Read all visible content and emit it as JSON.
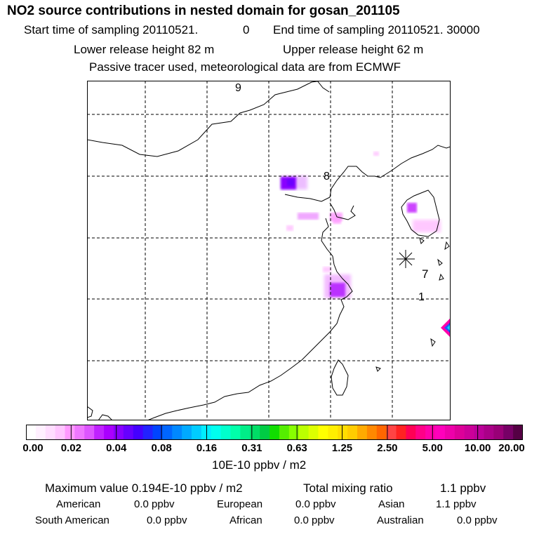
{
  "title": "NO2 source contributions in nested domain for gosan_201105",
  "header": {
    "start_label": "Start time of sampling 20110521.",
    "start_hour": "0",
    "end_label": "End time of sampling 20110521. 30000",
    "lower_height": "Lower release height   82 m",
    "upper_height": "Upper release height   62 m",
    "tracer_note": "Passive tracer used, meteorological data are from ECMWF"
  },
  "map": {
    "labels": [
      "9",
      "8",
      "7",
      "1"
    ],
    "receptor_marker": "star-marker"
  },
  "colorbar": {
    "ticks": [
      "0.00",
      "0.02",
      "0.04",
      "0.08",
      "0.16",
      "0.31",
      "0.63",
      "1.25",
      "2.50",
      "5.00",
      "10.00",
      "20.00"
    ],
    "colors": [
      "#ffffff",
      "#fff0ff",
      "#ffddff",
      "#ffc5ff",
      "#ff99ff",
      "#ee77ff",
      "#dd55ff",
      "#c022ff",
      "#aa00ff",
      "#8800ff",
      "#6600ff",
      "#4400ff",
      "#2222ff",
      "#0044ff",
      "#0066ff",
      "#0088ff",
      "#00aaff",
      "#00ccff",
      "#00eeff",
      "#00ffee",
      "#00ffcc",
      "#00ffaa",
      "#00ee88",
      "#00dd66",
      "#00cc44",
      "#11dd00",
      "#55ee00",
      "#88ff00",
      "#bbff00",
      "#ddff00",
      "#ffff00",
      "#ffee00",
      "#ffdd00",
      "#ffcc00",
      "#ffaa00",
      "#ff8800",
      "#ff6600",
      "#ff4444",
      "#ff2222",
      "#ff0055",
      "#ff0088",
      "#ff00aa",
      "#ff00bb",
      "#ee00aa",
      "#dd0099",
      "#cc0099",
      "#bb0099",
      "#aa0088",
      "#990077",
      "#770066",
      "#550044"
    ],
    "units": "10E-10 ppbv / m2"
  },
  "summary": {
    "max_value": "Maximum value  0.194E-10 ppbv / m2",
    "total_label": "Total mixing ratio",
    "total_value": "1.1 ppbv",
    "regions": [
      {
        "name": "American",
        "value": "0.0 ppbv"
      },
      {
        "name": "European",
        "value": "0.0 ppbv"
      },
      {
        "name": "Asian",
        "value": "1.1 ppbv"
      },
      {
        "name": "South American",
        "value": "0.0 ppbv"
      },
      {
        "name": "African",
        "value": "0.0 ppbv"
      },
      {
        "name": "Australian",
        "value": "0.0 ppbv"
      }
    ]
  }
}
